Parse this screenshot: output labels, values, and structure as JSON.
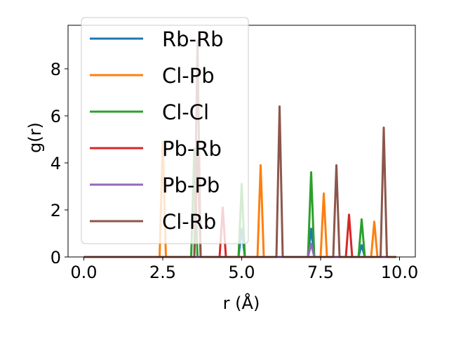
{
  "chart_data": {
    "type": "line",
    "title": "",
    "xlabel": "r (Å)",
    "ylabel": "g(r)",
    "xlim": [
      -0.5,
      10.5
    ],
    "ylim": [
      0,
      9.85
    ],
    "x_ticks": [
      0,
      2.5,
      5,
      7.5,
      10
    ],
    "x_tick_labels": [
      "0.0",
      "2.5",
      "5.0",
      "7.5",
      "10.0"
    ],
    "y_ticks": [
      0,
      2,
      4,
      6,
      8
    ],
    "y_tick_labels": [
      "0",
      "2",
      "4",
      "6",
      "8"
    ],
    "grid": false,
    "legend_position": "upper-left",
    "x_range": [
      0,
      9.9
    ],
    "bin_width": 0.1,
    "series": [
      {
        "name": "Rb-Rb",
        "color": "#1f77b4",
        "peaks": [
          [
            5.0,
            1.2
          ],
          [
            7.2,
            1.2
          ],
          [
            8.8,
            0.5
          ]
        ]
      },
      {
        "name": "Cl-Pb",
        "color": "#ff7f0e",
        "peaks": [
          [
            2.5,
            4.9
          ],
          [
            5.6,
            3.9
          ],
          [
            7.6,
            2.7
          ],
          [
            9.2,
            1.5
          ]
        ]
      },
      {
        "name": "Cl-Cl",
        "color": "#2ca02c",
        "peaks": [
          [
            3.5,
            4.6
          ],
          [
            5.0,
            3.1
          ],
          [
            7.2,
            3.6
          ],
          [
            8.8,
            1.6
          ]
        ]
      },
      {
        "name": "Pb-Rb",
        "color": "#d62728",
        "peaks": [
          [
            3.6,
            4.5
          ],
          [
            4.4,
            2.1
          ],
          [
            8.4,
            1.8
          ]
        ]
      },
      {
        "name": "Pb-Pb",
        "color": "#9467bd",
        "peaks": [
          [
            7.2,
            0.55
          ]
        ]
      },
      {
        "name": "Cl-Rb",
        "color": "#8c564b",
        "peaks": [
          [
            3.6,
            9.2
          ],
          [
            6.2,
            6.4
          ],
          [
            8.0,
            3.9
          ],
          [
            9.5,
            5.5
          ]
        ]
      }
    ]
  }
}
